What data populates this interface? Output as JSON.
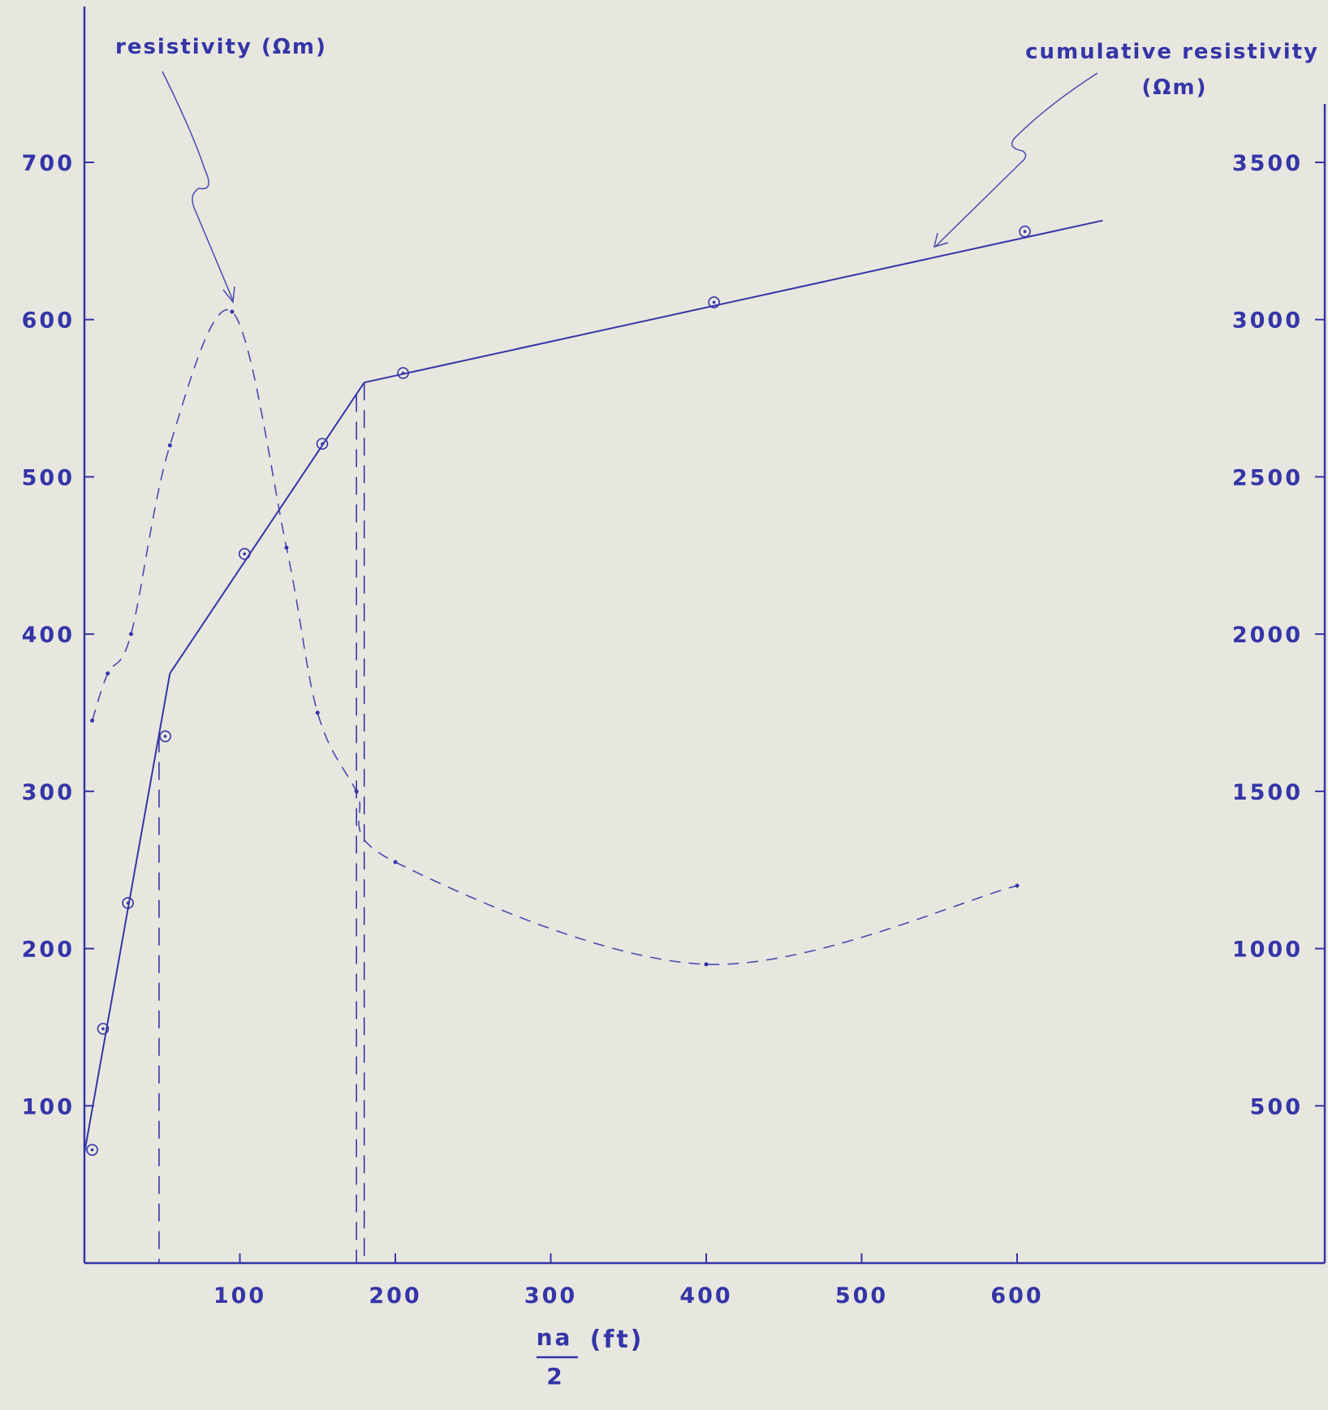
{
  "chart_data": {
    "type": "line",
    "title": "",
    "xlabel": {
      "numerator": "na",
      "denominator": "2",
      "unit": "(ft)"
    },
    "xlim": [
      0,
      800
    ],
    "x_ticks": [
      "100",
      "200",
      "300",
      "400",
      "500",
      "600"
    ],
    "y_left": {
      "label": "resistivity (Ωm)",
      "lim": [
        0,
        700
      ],
      "ticks": [
        "100",
        "200",
        "300",
        "400",
        "500",
        "600",
        "700"
      ]
    },
    "y_right": {
      "label_line1": "cumulative resistivity",
      "label_line2": "(Ωm)",
      "lim": [
        0,
        3500
      ],
      "ticks": [
        "500",
        "1000",
        "1500",
        "2000",
        "2500",
        "3000",
        "3500"
      ]
    },
    "grid": false,
    "legend": "none",
    "series": [
      {
        "name": "resistivity (Ωm)",
        "axis": "left",
        "style": "dashed",
        "x": [
          5,
          15,
          30,
          55,
          95,
          130,
          150,
          175,
          200,
          400,
          600
        ],
        "y": [
          345,
          375,
          400,
          520,
          605,
          455,
          350,
          300,
          255,
          190,
          240
        ]
      },
      {
        "name": "cumulative resistivity (Ωm)",
        "axis": "right",
        "style": "points",
        "x": [
          5,
          12,
          28,
          52,
          103,
          153,
          205,
          405,
          605
        ],
        "y": [
          360,
          745,
          1145,
          1675,
          2255,
          2605,
          2830,
          3055,
          3280
        ]
      }
    ],
    "fit_lines": [
      {
        "x": [
          0,
          55
        ],
        "y": [
          350,
          1875
        ]
      },
      {
        "x": [
          55,
          180
        ],
        "y": [
          1875,
          2800
        ]
      },
      {
        "x": [
          180,
          655
        ],
        "y": [
          2800,
          3315
        ]
      }
    ],
    "vertical_markers_x": [
      48,
      175,
      180
    ]
  }
}
